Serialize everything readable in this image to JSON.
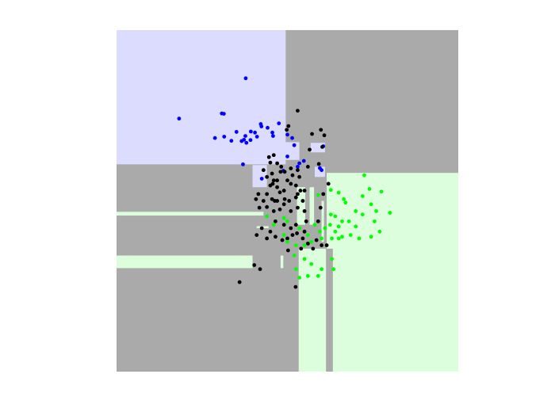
{
  "colors": {
    "background": "#ffffff",
    "region_blue": "#dcdcfe",
    "region_gray": "#aaaaaa",
    "region_green": "#dcfedc",
    "class_blue": "#0000ff",
    "class_black": "#000000",
    "class_green": "#00ff00"
  },
  "chart_data": {
    "type": "scatter",
    "xlim": [
      0,
      1
    ],
    "ylim": [
      0,
      1
    ],
    "axes_visible": false,
    "grid": false,
    "legend": "none",
    "regions": [
      {
        "class": "gray",
        "x0": 0.0,
        "x1": 1.0,
        "y0": 0.0,
        "y1": 1.0
      },
      {
        "class": "blue",
        "x0": 0.0,
        "x1": 0.495,
        "y0": 0.607,
        "y1": 1.0
      },
      {
        "class": "green",
        "x0": 0.615,
        "x1": 1.0,
        "y0": 0.0,
        "y1": 0.582
      },
      {
        "class": "green",
        "x0": 0.533,
        "x1": 0.615,
        "y0": 0.0,
        "y1": 0.36
      },
      {
        "class": "gray",
        "x0": 0.613,
        "x1": 0.633,
        "y0": 0.0,
        "y1": 0.36
      },
      {
        "class": "green",
        "x0": 0.0,
        "x1": 0.43,
        "y0": 0.457,
        "y1": 0.468
      },
      {
        "class": "green",
        "x0": 0.0,
        "x1": 0.398,
        "y0": 0.303,
        "y1": 0.34
      },
      {
        "class": "green",
        "x0": 0.41,
        "x1": 0.445,
        "y0": 0.42,
        "y1": 0.426
      },
      {
        "class": "green",
        "x0": 0.48,
        "x1": 0.488,
        "y0": 0.303,
        "y1": 0.34
      },
      {
        "class": "blue",
        "x0": 0.44,
        "x1": 0.535,
        "y0": 0.62,
        "y1": 0.672
      },
      {
        "class": "blue",
        "x0": 0.398,
        "x1": 0.44,
        "y0": 0.54,
        "y1": 0.605
      },
      {
        "class": "blue",
        "x0": 0.568,
        "x1": 0.61,
        "y0": 0.642,
        "y1": 0.67
      },
      {
        "class": "blue",
        "x0": 0.58,
        "x1": 0.61,
        "y0": 0.57,
        "y1": 0.6
      },
      {
        "class": "green",
        "x0": 0.528,
        "x1": 0.552,
        "y0": 0.43,
        "y1": 0.54
      },
      {
        "class": "green",
        "x0": 0.565,
        "x1": 0.578,
        "y0": 0.43,
        "y1": 0.54
      },
      {
        "class": "green",
        "x0": 0.6,
        "x1": 0.607,
        "y0": 0.38,
        "y1": 0.5
      }
    ],
    "series": [
      {
        "class": "blue",
        "points": [
          [
            0.378,
            0.859
          ],
          [
            0.183,
            0.741
          ],
          [
            0.308,
            0.756
          ],
          [
            0.314,
            0.755
          ],
          [
            0.424,
            0.718
          ],
          [
            0.422,
            0.725
          ],
          [
            0.475,
            0.727
          ],
          [
            0.393,
            0.703
          ],
          [
            0.377,
            0.69
          ],
          [
            0.351,
            0.702
          ],
          [
            0.366,
            0.675
          ],
          [
            0.392,
            0.678
          ],
          [
            0.442,
            0.714
          ],
          [
            0.456,
            0.7
          ],
          [
            0.458,
            0.69
          ],
          [
            0.514,
            0.684
          ],
          [
            0.52,
            0.663
          ],
          [
            0.288,
            0.684
          ],
          [
            0.315,
            0.688
          ],
          [
            0.336,
            0.676
          ],
          [
            0.373,
            0.679
          ],
          [
            0.38,
            0.67
          ],
          [
            0.411,
            0.688
          ],
          [
            0.405,
            0.7
          ],
          [
            0.5,
            0.694
          ],
          [
            0.5,
            0.63
          ],
          [
            0.548,
            0.617
          ],
          [
            0.37,
            0.607
          ],
          [
            0.535,
            0.61
          ],
          [
            0.595,
            0.596
          ],
          [
            0.6,
            0.59
          ],
          [
            0.605,
            0.66
          ],
          [
            0.53,
            0.6
          ],
          [
            0.425,
            0.565
          ],
          [
            0.488,
            0.588
          ]
        ]
      },
      {
        "class": "black",
        "points": [
          [
            0.53,
            0.764
          ],
          [
            0.503,
            0.719
          ],
          [
            0.498,
            0.708
          ],
          [
            0.598,
            0.708
          ],
          [
            0.572,
            0.696
          ],
          [
            0.608,
            0.692
          ],
          [
            0.602,
            0.658
          ],
          [
            0.592,
            0.608
          ],
          [
            0.446,
            0.628
          ],
          [
            0.46,
            0.634
          ],
          [
            0.45,
            0.612
          ],
          [
            0.47,
            0.61
          ],
          [
            0.43,
            0.59
          ],
          [
            0.455,
            0.58
          ],
          [
            0.46,
            0.56
          ],
          [
            0.482,
            0.6
          ],
          [
            0.492,
            0.585
          ],
          [
            0.51,
            0.595
          ],
          [
            0.53,
            0.59
          ],
          [
            0.535,
            0.57
          ],
          [
            0.44,
            0.57
          ],
          [
            0.45,
            0.545
          ],
          [
            0.47,
            0.54
          ],
          [
            0.478,
            0.525
          ],
          [
            0.49,
            0.53
          ],
          [
            0.5,
            0.56
          ],
          [
            0.51,
            0.55
          ],
          [
            0.525,
            0.545
          ],
          [
            0.525,
            0.51
          ],
          [
            0.505,
            0.5
          ],
          [
            0.49,
            0.49
          ],
          [
            0.47,
            0.5
          ],
          [
            0.455,
            0.505
          ],
          [
            0.44,
            0.52
          ],
          [
            0.43,
            0.5
          ],
          [
            0.415,
            0.52
          ],
          [
            0.408,
            0.505
          ],
          [
            0.418,
            0.48
          ],
          [
            0.44,
            0.482
          ],
          [
            0.46,
            0.47
          ],
          [
            0.478,
            0.475
          ],
          [
            0.51,
            0.47
          ],
          [
            0.53,
            0.48
          ],
          [
            0.545,
            0.5
          ],
          [
            0.55,
            0.47
          ],
          [
            0.555,
            0.44
          ],
          [
            0.525,
            0.43
          ],
          [
            0.51,
            0.42
          ],
          [
            0.49,
            0.43
          ],
          [
            0.465,
            0.44
          ],
          [
            0.45,
            0.41
          ],
          [
            0.425,
            0.42
          ],
          [
            0.41,
            0.4
          ],
          [
            0.44,
            0.39
          ],
          [
            0.465,
            0.395
          ],
          [
            0.485,
            0.385
          ],
          [
            0.5,
            0.39
          ],
          [
            0.515,
            0.4
          ],
          [
            0.528,
            0.405
          ],
          [
            0.545,
            0.39
          ],
          [
            0.585,
            0.385
          ],
          [
            0.6,
            0.37
          ],
          [
            0.575,
            0.36
          ],
          [
            0.56,
            0.375
          ],
          [
            0.59,
            0.44
          ],
          [
            0.597,
            0.48
          ],
          [
            0.605,
            0.52
          ],
          [
            0.62,
            0.55
          ],
          [
            0.56,
            0.6
          ],
          [
            0.565,
            0.65
          ],
          [
            0.403,
            0.312
          ],
          [
            0.42,
            0.3
          ],
          [
            0.36,
            0.262
          ],
          [
            0.524,
            0.248
          ],
          [
            0.463,
            0.5
          ],
          [
            0.457,
            0.55
          ],
          [
            0.53,
            0.52
          ],
          [
            0.55,
            0.53
          ],
          [
            0.54,
            0.36
          ],
          [
            0.502,
            0.355
          ],
          [
            0.48,
            0.585
          ],
          [
            0.47,
            0.56
          ],
          [
            0.492,
            0.505
          ],
          [
            0.515,
            0.575
          ],
          [
            0.538,
            0.53
          ],
          [
            0.55,
            0.41
          ],
          [
            0.615,
            0.37
          ]
        ]
      },
      {
        "class": "green",
        "points": [
          [
            0.725,
            0.575
          ],
          [
            0.74,
            0.535
          ],
          [
            0.775,
            0.527
          ],
          [
            0.72,
            0.514
          ],
          [
            0.65,
            0.524
          ],
          [
            0.627,
            0.532
          ],
          [
            0.59,
            0.517
          ],
          [
            0.665,
            0.505
          ],
          [
            0.745,
            0.49
          ],
          [
            0.67,
            0.495
          ],
          [
            0.7,
            0.47
          ],
          [
            0.72,
            0.46
          ],
          [
            0.76,
            0.47
          ],
          [
            0.8,
            0.465
          ],
          [
            0.627,
            0.46
          ],
          [
            0.64,
            0.455
          ],
          [
            0.66,
            0.44
          ],
          [
            0.68,
            0.44
          ],
          [
            0.65,
            0.425
          ],
          [
            0.7,
            0.425
          ],
          [
            0.755,
            0.44
          ],
          [
            0.77,
            0.41
          ],
          [
            0.745,
            0.395
          ],
          [
            0.71,
            0.39
          ],
          [
            0.685,
            0.4
          ],
          [
            0.66,
            0.395
          ],
          [
            0.64,
            0.41
          ],
          [
            0.625,
            0.43
          ],
          [
            0.61,
            0.42
          ],
          [
            0.595,
            0.41
          ],
          [
            0.63,
            0.39
          ],
          [
            0.58,
            0.43
          ],
          [
            0.56,
            0.4
          ],
          [
            0.57,
            0.38
          ],
          [
            0.55,
            0.37
          ],
          [
            0.535,
            0.42
          ],
          [
            0.5,
            0.44
          ],
          [
            0.49,
            0.4
          ],
          [
            0.5,
            0.38
          ],
          [
            0.525,
            0.37
          ],
          [
            0.52,
            0.34
          ],
          [
            0.55,
            0.33
          ],
          [
            0.57,
            0.315
          ],
          [
            0.6,
            0.3
          ],
          [
            0.63,
            0.33
          ],
          [
            0.635,
            0.3
          ],
          [
            0.59,
            0.28
          ],
          [
            0.56,
            0.28
          ],
          [
            0.535,
            0.275
          ],
          [
            0.49,
            0.45
          ],
          [
            0.46,
            0.43
          ],
          [
            0.44,
            0.455
          ],
          [
            0.525,
            0.3
          ],
          [
            0.65,
            0.39
          ],
          [
            0.6,
            0.39
          ]
        ]
      }
    ]
  }
}
